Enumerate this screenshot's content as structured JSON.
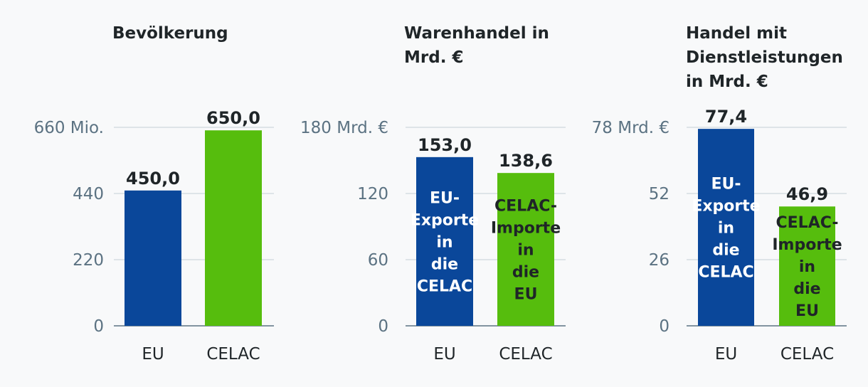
{
  "colors": {
    "eu": "#0a479a",
    "celac": "#56bd0d",
    "grid": "#c5ced6",
    "axis": "#5b7282"
  },
  "chart_data": [
    {
      "type": "bar",
      "title": "Bevölkerung",
      "categories": [
        "EU",
        "CELAC"
      ],
      "values": [
        450.0,
        650.0
      ],
      "value_labels": [
        "450,0",
        "650,0"
      ],
      "bar_labels": [
        "",
        ""
      ],
      "ylim": [
        0,
        660
      ],
      "yticks": [
        0,
        220,
        440,
        660
      ],
      "ytick_labels": [
        "0",
        "220",
        "440",
        "660 Mio."
      ],
      "grid": true
    },
    {
      "type": "bar",
      "title": "Warenhandel in Mrd. €",
      "categories": [
        "EU",
        "CELAC"
      ],
      "values": [
        153.0,
        138.6
      ],
      "value_labels": [
        "153,0",
        "138,6"
      ],
      "bar_labels": [
        "EU-Exporte in die CELAC",
        "CELAC-Importe in die EU"
      ],
      "ylim": [
        0,
        180
      ],
      "yticks": [
        0,
        60,
        120,
        180
      ],
      "ytick_labels": [
        "0",
        "60",
        "120",
        "180 Mrd. €"
      ],
      "grid": true
    },
    {
      "type": "bar",
      "title": "Handel mit Dienstleistungen in Mrd. €",
      "categories": [
        "EU",
        "CELAC"
      ],
      "values": [
        77.4,
        46.9
      ],
      "value_labels": [
        "77,4",
        "46,9"
      ],
      "bar_labels": [
        "EU-Exporte in die CELAC",
        "CELAC-Importe in die EU"
      ],
      "ylim": [
        0,
        78
      ],
      "yticks": [
        0,
        26,
        52,
        78
      ],
      "ytick_labels": [
        "0",
        "26",
        "52",
        "78 Mrd. €"
      ],
      "grid": true
    }
  ]
}
